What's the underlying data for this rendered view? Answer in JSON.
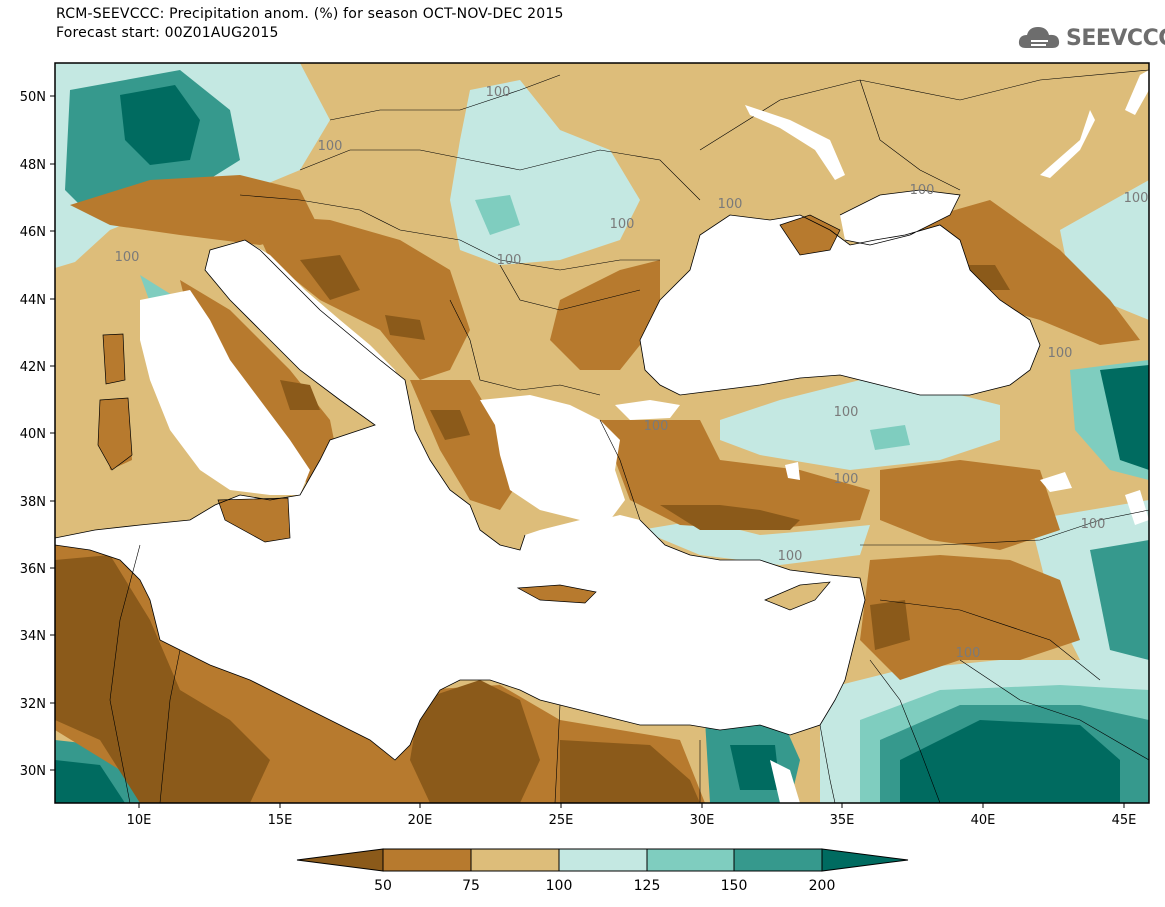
{
  "header": {
    "title": "RCM-SEEVCCC: Precipitation anom. (%) for season OCT-NOV-DEC 2015",
    "subtitle": "Forecast start: 00Z01AUG2015",
    "logo_text": "SEEVCCC"
  },
  "map": {
    "lat_labels": [
      "50N",
      "48N",
      "46N",
      "44N",
      "42N",
      "40N",
      "38N",
      "36N",
      "34N",
      "32N",
      "30N"
    ],
    "lon_labels": [
      "10E",
      "15E",
      "20E",
      "25E",
      "30E",
      "35E",
      "40E",
      "45E"
    ],
    "contour_labels": [
      "100",
      "100",
      "100",
      "100",
      "100",
      "100",
      "100",
      "100",
      "100",
      "100",
      "100",
      "100",
      "100",
      "100",
      "100"
    ],
    "colors": {
      "below_50": "#8b5a1a",
      "50_75": "#b77a2e",
      "75_100": "#ddbd7a",
      "100_125": "#c4e8e2",
      "125_150": "#7fcdbf",
      "150_200": "#36998d",
      "above_200": "#006b60",
      "sea": "#ffffff"
    }
  },
  "colorbar": {
    "labels": [
      "50",
      "75",
      "100",
      "125",
      "150",
      "200"
    ],
    "colors": [
      "#8b5a1a",
      "#b77a2e",
      "#ddbd7a",
      "#c4e8e2",
      "#7fcdbf",
      "#36998d",
      "#006b60"
    ]
  }
}
